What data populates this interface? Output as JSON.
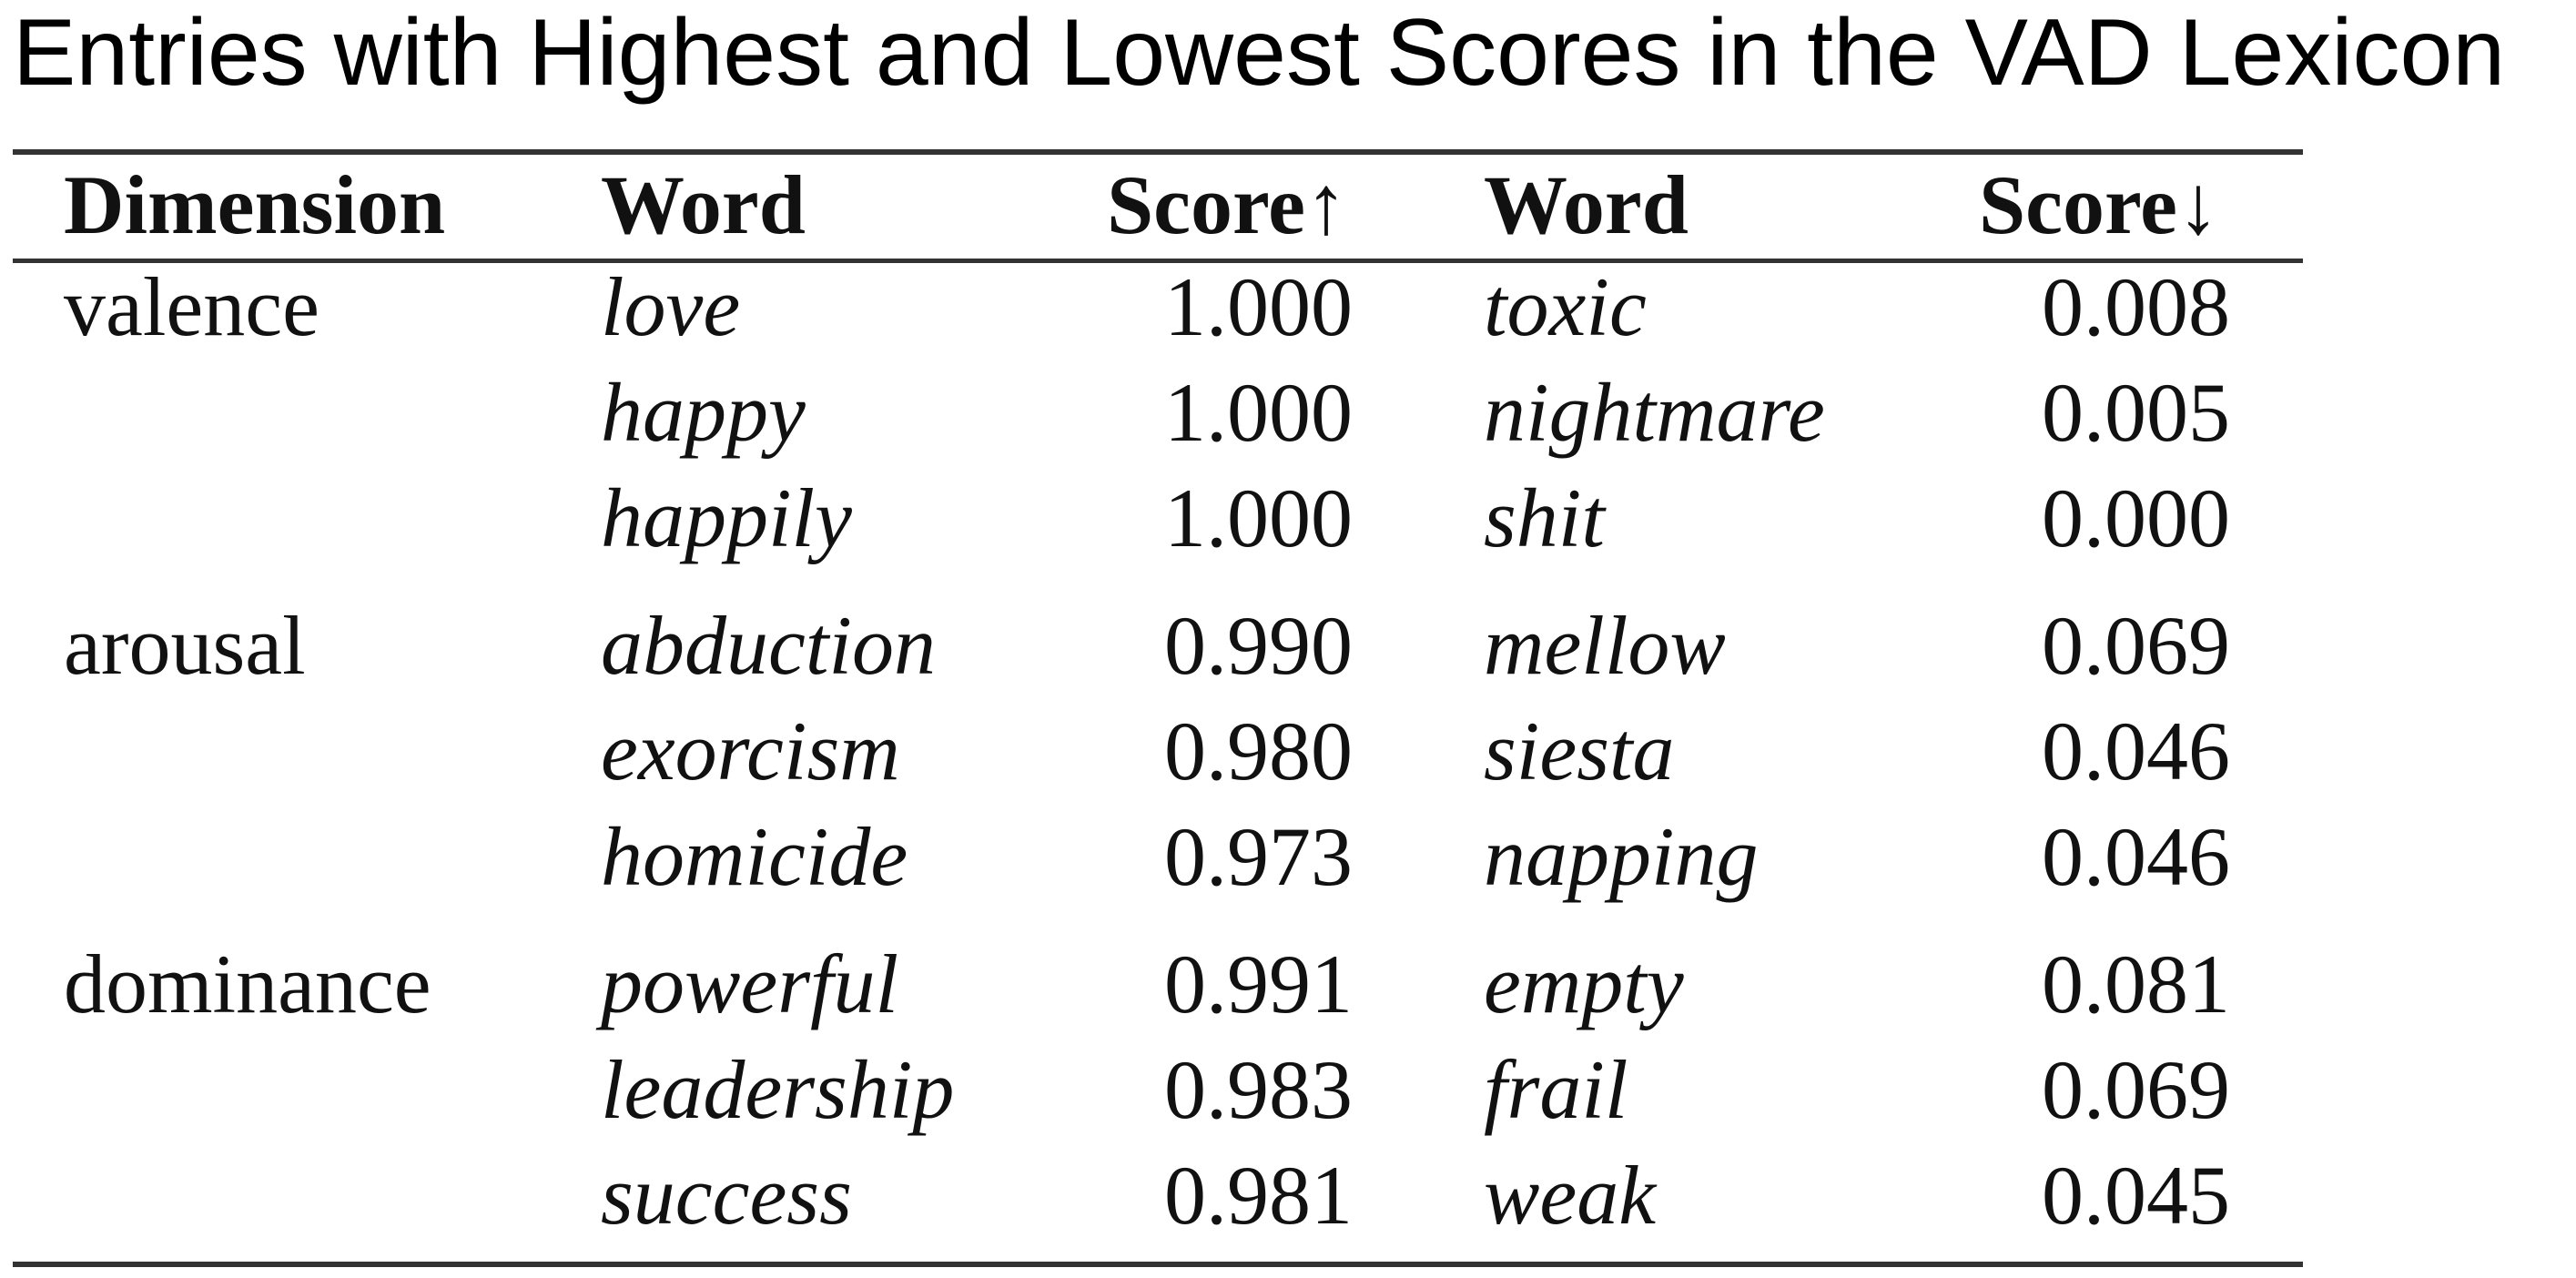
{
  "title": "Entries with Highest and Lowest Scores in the VAD Lexicon",
  "chart_data": {
    "type": "table",
    "title": "Entries with Highest and Lowest Scores in the VAD Lexicon",
    "columns": [
      "Dimension",
      "Word",
      "Score↑",
      "Word",
      "Score↓"
    ],
    "rows": [
      {
        "dimension": "valence",
        "high_word": "love",
        "high_score": "1.000",
        "low_word": "toxic",
        "low_score": "0.008"
      },
      {
        "dimension": "",
        "high_word": "happy",
        "high_score": "1.000",
        "low_word": "nightmare",
        "low_score": "0.005"
      },
      {
        "dimension": "",
        "high_word": "happily",
        "high_score": "1.000",
        "low_word": "shit",
        "low_score": "0.000"
      },
      {
        "dimension": "arousal",
        "high_word": "abduction",
        "high_score": "0.990",
        "low_word": "mellow",
        "low_score": "0.069"
      },
      {
        "dimension": "",
        "high_word": "exorcism",
        "high_score": "0.980",
        "low_word": "siesta",
        "low_score": "0.046"
      },
      {
        "dimension": "",
        "high_word": "homicide",
        "high_score": "0.973",
        "low_word": "napping",
        "low_score": "0.046"
      },
      {
        "dimension": "dominance",
        "high_word": "powerful",
        "high_score": "0.991",
        "low_word": "empty",
        "low_score": "0.081"
      },
      {
        "dimension": "",
        "high_word": "leadership",
        "high_score": "0.983",
        "low_word": "frail",
        "low_score": "0.069"
      },
      {
        "dimension": "",
        "high_word": "success",
        "high_score": "0.981",
        "low_word": "weak",
        "low_score": "0.045"
      }
    ]
  }
}
